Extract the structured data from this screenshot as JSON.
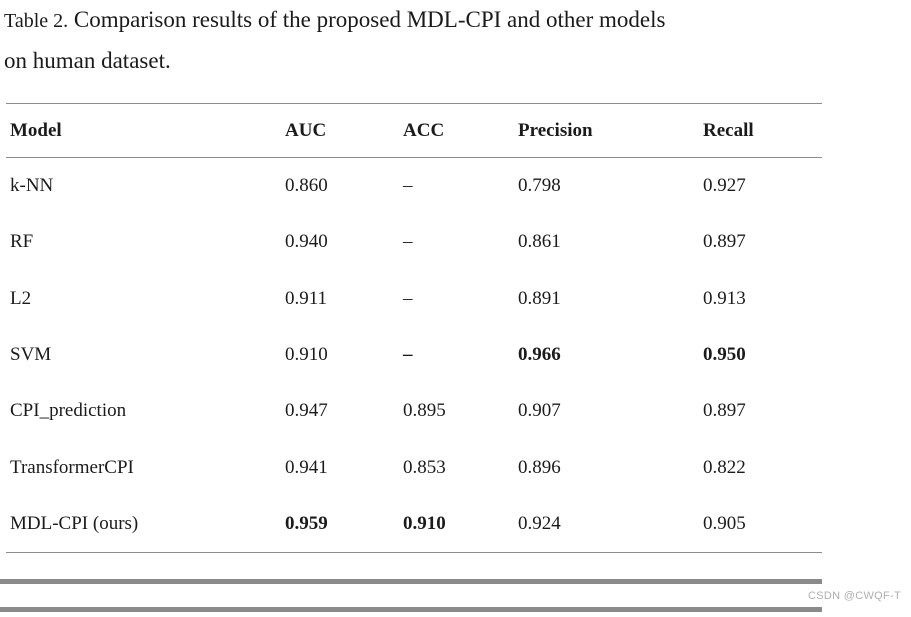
{
  "title": {
    "label": "Table 2.",
    "line1": "Comparison results of the proposed MDL-CPI and other models",
    "line2": "on human dataset."
  },
  "chart_data": {
    "type": "table",
    "title": "Table 2. Comparison results of the proposed MDL-CPI and other models on human dataset.",
    "columns": [
      "Model",
      "AUC",
      "ACC",
      "Precision",
      "Recall"
    ],
    "rows": [
      {
        "cells": [
          "k-NN",
          "0.860",
          "–",
          "0.798",
          "0.927"
        ],
        "bold": [
          false,
          false,
          false,
          false,
          false
        ]
      },
      {
        "cells": [
          "RF",
          "0.940",
          "–",
          "0.861",
          "0.897"
        ],
        "bold": [
          false,
          false,
          false,
          false,
          false
        ]
      },
      {
        "cells": [
          "L2",
          "0.911",
          "–",
          "0.891",
          "0.913"
        ],
        "bold": [
          false,
          false,
          false,
          false,
          false
        ]
      },
      {
        "cells": [
          "SVM",
          "0.910",
          "–",
          "0.966",
          "0.950"
        ],
        "bold": [
          false,
          false,
          true,
          true,
          true
        ]
      },
      {
        "cells": [
          "CPI_prediction",
          "0.947",
          "0.895",
          "0.907",
          "0.897"
        ],
        "bold": [
          false,
          false,
          false,
          false,
          false
        ]
      },
      {
        "cells": [
          "TransformerCPI",
          "0.941",
          "0.853",
          "0.896",
          "0.822"
        ],
        "bold": [
          false,
          false,
          false,
          false,
          false
        ]
      },
      {
        "cells": [
          "MDL-CPI (ours)",
          "0.959",
          "0.910",
          "0.924",
          "0.905"
        ],
        "bold": [
          false,
          true,
          true,
          false,
          false
        ]
      }
    ]
  },
  "watermark": "CSDN @CWQF-T",
  "colors": {
    "text": "#1b1b1b",
    "thin_rule": "#8d8d8d",
    "thick_bar": "#8a8a8a",
    "watermark": "#b0b0b0",
    "background": "#ffffff"
  }
}
